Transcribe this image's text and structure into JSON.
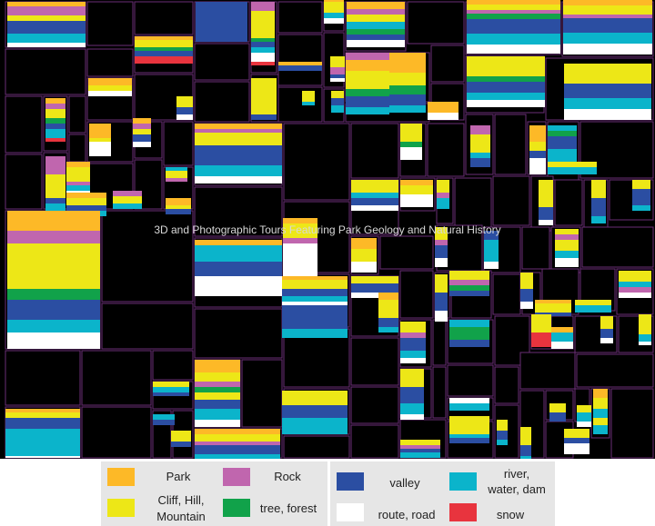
{
  "chart_data": {
    "type": "treemap",
    "title": "3D and Photographic Tours Featuring Park Geology and Natural History",
    "categories": [
      {
        "id": "park",
        "label": "Park",
        "color": "#FDB927"
      },
      {
        "id": "rock",
        "label": "Rock",
        "color": "#C066AE"
      },
      {
        "id": "valley",
        "label": "valley",
        "color": "#2B4EA2"
      },
      {
        "id": "river",
        "label": "river, water, dam",
        "color": "#0BB4CB"
      },
      {
        "id": "cliff",
        "label": "Cliff, Hill, Mountain",
        "color": "#EDE717"
      },
      {
        "id": "tree",
        "label": "tree, forest",
        "color": "#11A24A"
      },
      {
        "id": "route",
        "label": "route, road",
        "color": "#FFFFFF"
      },
      {
        "id": "snow",
        "label": "snow",
        "color": "#E8343E"
      }
    ]
  },
  "legend": {
    "park": "Park",
    "rock": "Rock",
    "cliff_line1": "Cliff, Hill,",
    "cliff_line2": "Mountain",
    "tree": "tree, forest",
    "valley": "valley",
    "river_line1": "river,",
    "river_line2": "water, dam",
    "route": "route, road",
    "snow": "snow"
  }
}
